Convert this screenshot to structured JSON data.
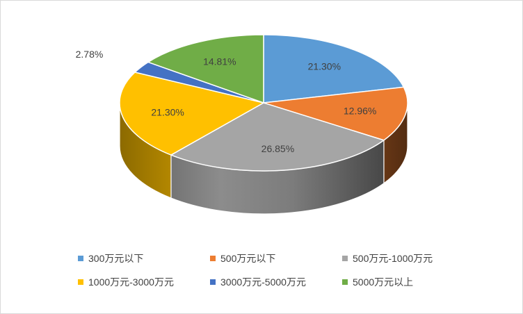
{
  "chart_data": {
    "type": "pie",
    "title": "",
    "categories": [
      "300万元以下",
      "500万元以下",
      "500万元-1000万元",
      "1000万元-3000万元",
      "3000万元-5000万元",
      "5000万元以上"
    ],
    "values": [
      21.3,
      12.96,
      26.85,
      21.3,
      2.78,
      14.81
    ],
    "labels": [
      "21.30%",
      "12.96%",
      "26.85%",
      "21.30%",
      "2.78%",
      "14.81%"
    ],
    "colors": [
      "#5b9bd5",
      "#ed7d31",
      "#a5a5a5",
      "#ffc000",
      "#4472c4",
      "#70ad47"
    ],
    "legend_position": "bottom",
    "style": "3d"
  }
}
